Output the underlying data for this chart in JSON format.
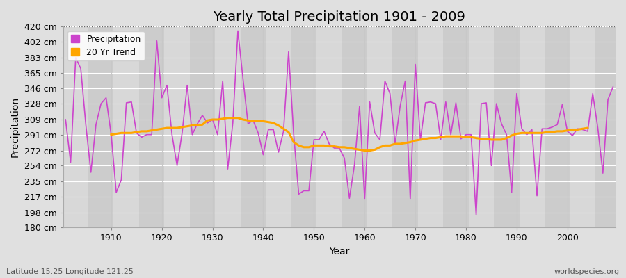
{
  "title": "Yearly Total Precipitation 1901 - 2009",
  "xlabel": "Year",
  "ylabel": "Precipitation",
  "subtitle": "Latitude 15.25 Longitude 121.25",
  "credit": "worldspecies.org",
  "ylim": [
    180,
    420
  ],
  "yticks": [
    180,
    198,
    217,
    235,
    254,
    272,
    291,
    309,
    328,
    346,
    365,
    383,
    402,
    420
  ],
  "ytick_labels": [
    "180 cm",
    "198 cm",
    "217 cm",
    "235 cm",
    "254 cm",
    "272 cm",
    "291 cm",
    "309 cm",
    "328 cm",
    "346 cm",
    "365 cm",
    "383 cm",
    "402 cm",
    "420 cm"
  ],
  "years": [
    1901,
    1902,
    1903,
    1904,
    1905,
    1906,
    1907,
    1908,
    1909,
    1910,
    1911,
    1912,
    1913,
    1914,
    1915,
    1916,
    1917,
    1918,
    1919,
    1920,
    1921,
    1922,
    1923,
    1924,
    1925,
    1926,
    1927,
    1928,
    1929,
    1930,
    1931,
    1932,
    1933,
    1934,
    1935,
    1936,
    1937,
    1938,
    1939,
    1940,
    1941,
    1942,
    1943,
    1944,
    1945,
    1946,
    1947,
    1948,
    1949,
    1950,
    1951,
    1952,
    1953,
    1954,
    1955,
    1956,
    1957,
    1958,
    1959,
    1960,
    1961,
    1962,
    1963,
    1964,
    1965,
    1966,
    1967,
    1968,
    1969,
    1970,
    1971,
    1972,
    1973,
    1974,
    1975,
    1976,
    1977,
    1978,
    1979,
    1980,
    1981,
    1982,
    1983,
    1984,
    1985,
    1986,
    1987,
    1988,
    1989,
    1990,
    1991,
    1992,
    1993,
    1994,
    1995,
    1996,
    1997,
    1998,
    1999,
    2000,
    2001,
    2002,
    2003,
    2004,
    2005,
    2006,
    2007,
    2008,
    2009
  ],
  "precipitation": [
    309,
    258,
    383,
    370,
    303,
    246,
    303,
    328,
    335,
    291,
    222,
    237,
    329,
    330,
    293,
    288,
    291,
    291,
    403,
    335,
    350,
    291,
    254,
    293,
    350,
    291,
    304,
    314,
    305,
    309,
    291,
    355,
    250,
    305,
    415,
    358,
    304,
    308,
    293,
    267,
    297,
    297,
    270,
    295,
    390,
    292,
    220,
    224,
    224,
    285,
    285,
    295,
    280,
    275,
    275,
    263,
    215,
    255,
    325,
    214,
    330,
    293,
    285,
    355,
    340,
    280,
    325,
    355,
    214,
    375,
    285,
    329,
    330,
    328,
    285,
    330,
    291,
    329,
    286,
    291,
    291,
    195,
    328,
    329,
    254,
    328,
    304,
    291,
    222,
    340,
    298,
    291,
    297,
    218,
    298,
    298,
    300,
    303,
    327,
    295,
    290,
    298,
    297,
    295,
    340,
    299,
    245,
    333,
    348
  ],
  "trend": [
    null,
    null,
    null,
    null,
    null,
    null,
    null,
    null,
    null,
    291,
    292,
    293,
    293,
    293,
    294,
    295,
    295,
    296,
    297,
    298,
    299,
    299,
    299,
    300,
    301,
    302,
    302,
    303,
    308,
    309,
    309,
    310,
    311,
    311,
    311,
    309,
    308,
    307,
    307,
    307,
    306,
    305,
    302,
    298,
    294,
    282,
    278,
    276,
    276,
    278,
    278,
    278,
    277,
    277,
    276,
    276,
    275,
    274,
    273,
    272,
    272,
    273,
    276,
    278,
    278,
    280,
    280,
    281,
    282,
    284,
    285,
    286,
    287,
    287,
    288,
    289,
    289,
    289,
    289,
    288,
    288,
    287,
    286,
    286,
    285,
    285,
    285,
    287,
    290,
    292,
    293,
    293,
    293,
    293,
    293,
    294,
    294,
    295,
    295,
    296,
    297,
    297,
    298,
    299,
    null,
    null,
    null,
    null,
    null
  ],
  "precip_color": "#cc44cc",
  "trend_color": "#ffa500",
  "bg_color": "#e0e0e0",
  "plot_bg_color": "#e0e0e0",
  "band_color_light": "#dcdcdc",
  "band_color_dark": "#c8c8c8",
  "grid_h_color": "#ffffff",
  "grid_v_color": "#c8c8c8",
  "title_fontsize": 14,
  "label_fontsize": 10,
  "tick_fontsize": 9,
  "xtick_positions": [
    1910,
    1920,
    1930,
    1940,
    1950,
    1960,
    1970,
    1980,
    1990,
    2000
  ]
}
